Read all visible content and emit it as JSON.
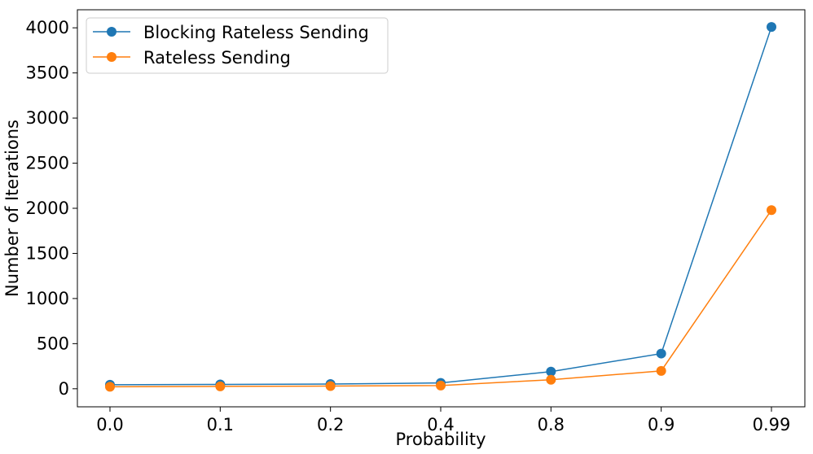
{
  "chart_data": {
    "type": "line",
    "categories": [
      "0.0",
      "0.1",
      "0.2",
      "0.4",
      "0.8",
      "0.9",
      "0.99"
    ],
    "xlabel": "Probability",
    "ylabel": "Number of Iterations",
    "ylim": [
      -200,
      4200
    ],
    "yticks": [
      0,
      500,
      1000,
      1500,
      2000,
      2500,
      3000,
      3500,
      4000
    ],
    "ytick_labels": [
      "0",
      "500",
      "1000",
      "1500",
      "2000",
      "2500",
      "3000",
      "3500",
      "4000"
    ],
    "grid": false,
    "legend_position": "top-left",
    "series": [
      {
        "name": "Blocking Rateless Sending",
        "color": "#1f77b4",
        "values": [
          45,
          48,
          52,
          65,
          190,
          390,
          4010
        ]
      },
      {
        "name": "Rateless Sending",
        "color": "#ff7f0e",
        "values": [
          22,
          26,
          30,
          36,
          100,
          198,
          1980
        ]
      }
    ]
  }
}
